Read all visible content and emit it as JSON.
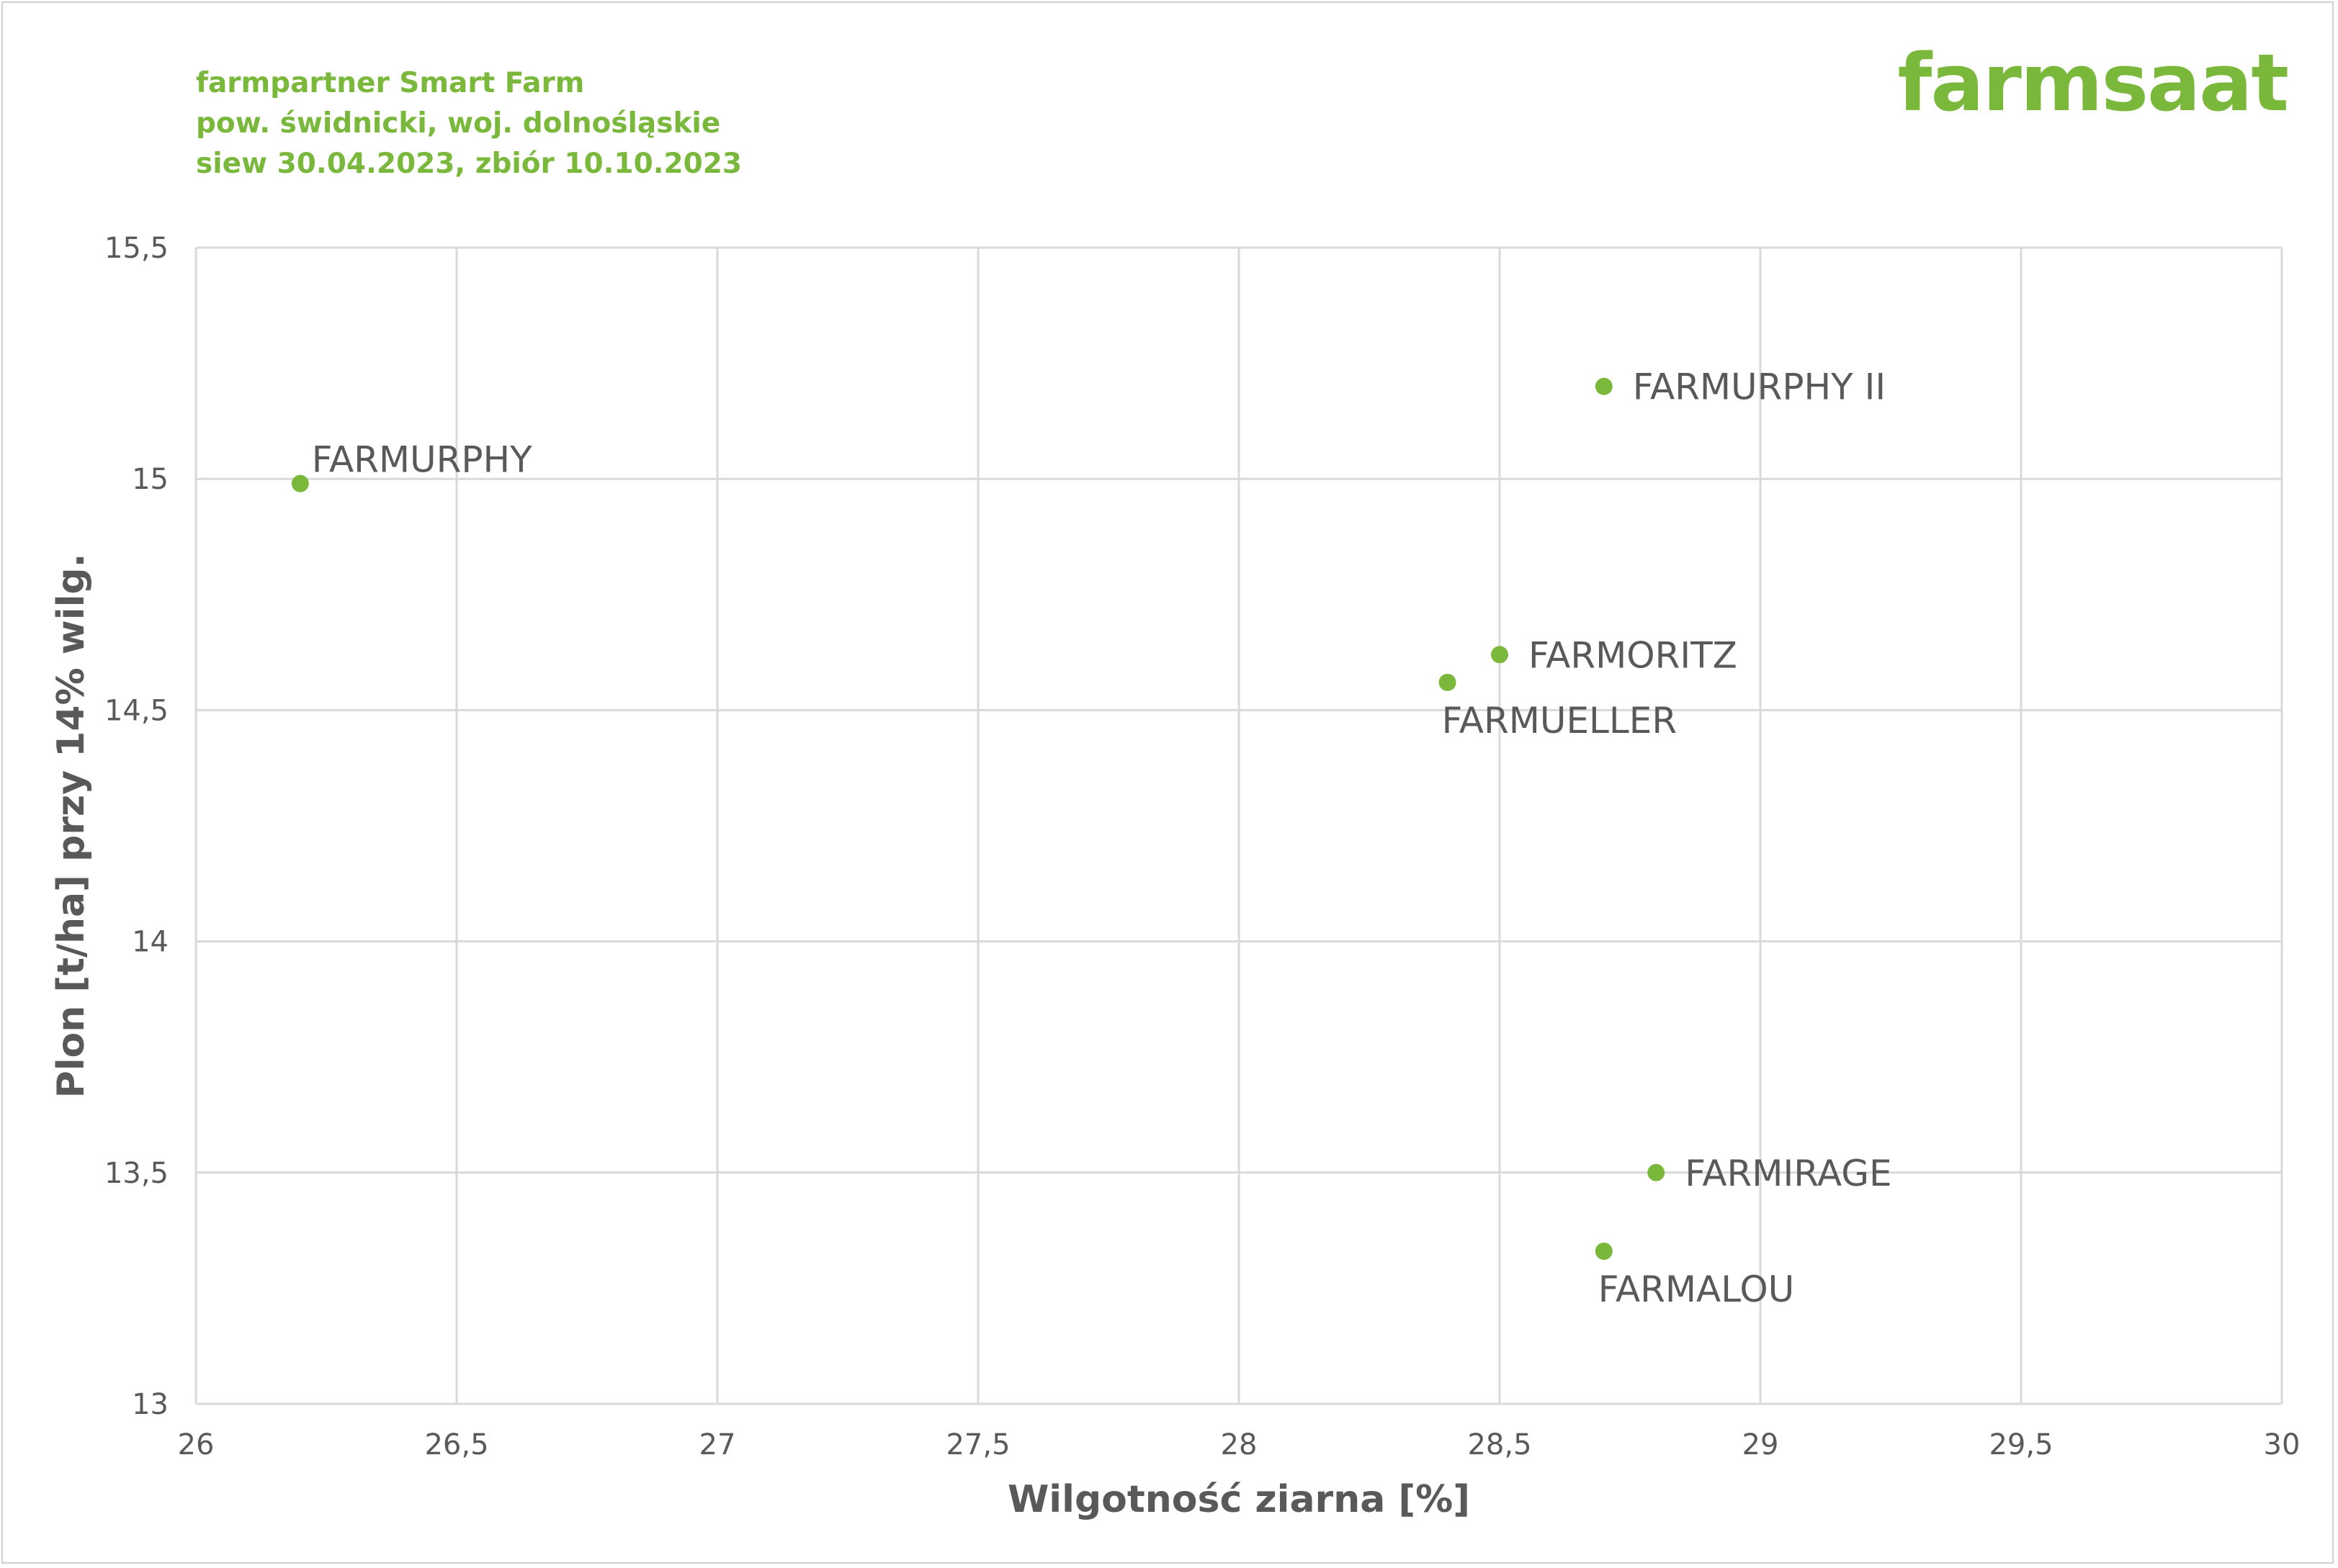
{
  "header": {
    "line1": "farmpartner Smart Farm",
    "line2": "pow. świdnicki, woj. dolnośląskie",
    "line3": "siew 30.04.2023, zbiór 10.10.2023"
  },
  "logo": "farmsaat",
  "colors": {
    "accent": "#7ab83c",
    "text": "#595959",
    "grid": "#d9d9d9"
  },
  "chart_data": {
    "type": "scatter",
    "xlabel": "Wilgotność ziarna [%]",
    "ylabel": "Plon [t/ha] przy 14% wilg.",
    "xlim": [
      26,
      30
    ],
    "ylim": [
      13,
      15.5
    ],
    "x_ticks": [
      "26",
      "26,5",
      "27",
      "27,5",
      "28",
      "28,5",
      "29",
      "29,5",
      "30"
    ],
    "y_ticks": [
      "13",
      "13,5",
      "14",
      "14,5",
      "15",
      "15,5"
    ],
    "grid": true,
    "points": [
      {
        "label": "FARMURPHY",
        "x": 26.2,
        "y": 14.99,
        "label_pos": "above-right"
      },
      {
        "label": "FARMURPHY II",
        "x": 28.7,
        "y": 15.2,
        "label_pos": "right"
      },
      {
        "label": "FARMORITZ",
        "x": 28.5,
        "y": 14.62,
        "label_pos": "right"
      },
      {
        "label": "FARMUELLER",
        "x": 28.4,
        "y": 14.56,
        "label_pos": "below"
      },
      {
        "label": "FARMIRAGE",
        "x": 28.8,
        "y": 13.5,
        "label_pos": "right"
      },
      {
        "label": "FARMALOU",
        "x": 28.7,
        "y": 13.33,
        "label_pos": "below"
      }
    ]
  }
}
